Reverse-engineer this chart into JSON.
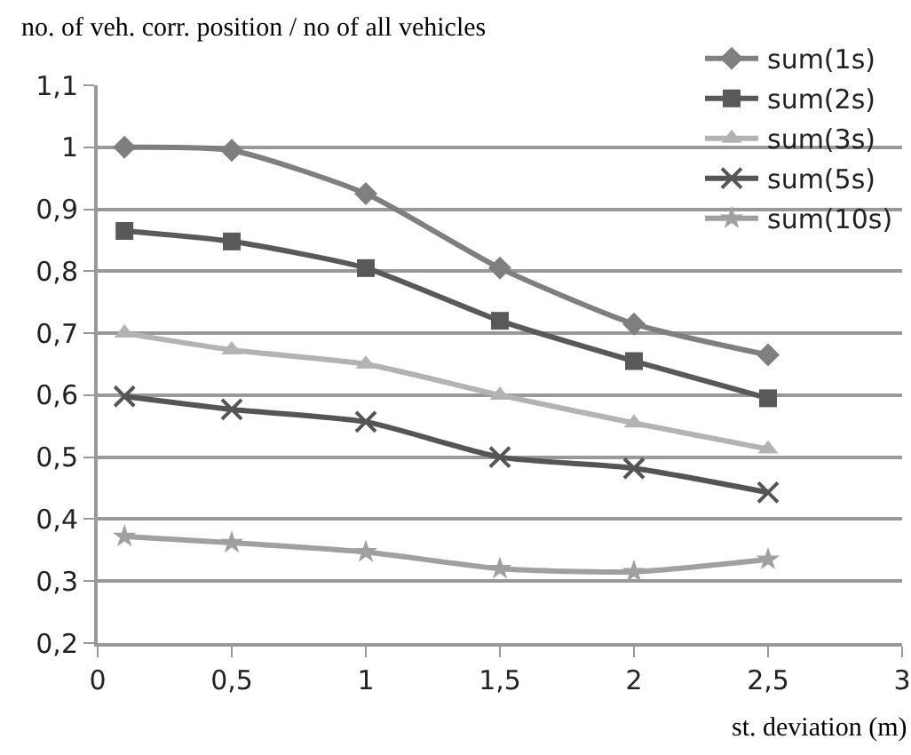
{
  "chart_data": {
    "type": "line",
    "xlabel": "st. deviation (m)",
    "ylabel": "no. of veh. corr. position / no of all vehicles",
    "x": [
      0.1,
      0.5,
      1,
      1.5,
      2,
      2.5
    ],
    "series": [
      {
        "name": "sum(1s)",
        "color": "#7f7f7f",
        "marker": "diamond",
        "values": [
          1.0,
          0.995,
          0.925,
          0.805,
          0.715,
          0.665
        ]
      },
      {
        "name": "sum(2s)",
        "color": "#595959",
        "marker": "square",
        "values": [
          0.865,
          0.848,
          0.805,
          0.72,
          0.655,
          0.595
        ]
      },
      {
        "name": "sum(3s)",
        "color": "#b3b3b3",
        "marker": "triangle",
        "values": [
          0.7,
          0.673,
          0.65,
          0.6,
          0.555,
          0.513
        ]
      },
      {
        "name": "sum(5s)",
        "color": "#555555",
        "marker": "cross",
        "values": [
          0.598,
          0.577,
          0.557,
          0.5,
          0.482,
          0.443
        ]
      },
      {
        "name": "sum(10s)",
        "color": "#a0a0a0",
        "marker": "star",
        "values": [
          0.372,
          0.362,
          0.347,
          0.32,
          0.315,
          0.335
        ]
      }
    ],
    "xlim": [
      0,
      3
    ],
    "xticks": [
      0,
      {
        "value": 0.5,
        "label": "0,5"
      },
      1,
      {
        "value": 1.5,
        "label": "1,5"
      },
      2,
      {
        "value": 2.5,
        "label": "2,5"
      },
      3
    ],
    "ylim": [
      0.2,
      1.1
    ],
    "yticks": [
      {
        "value": 0.2,
        "label": "0,2"
      },
      {
        "value": 0.3,
        "label": "0,3"
      },
      {
        "value": 0.4,
        "label": "0,4"
      },
      {
        "value": 0.5,
        "label": "0,5"
      },
      {
        "value": 0.6,
        "label": "0,6"
      },
      {
        "value": 0.7,
        "label": "0,7"
      },
      {
        "value": 0.8,
        "label": "0,8"
      },
      {
        "value": 0.9,
        "label": "0,9"
      },
      1,
      {
        "value": 1.1,
        "label": "1,1"
      }
    ],
    "grid": "y",
    "legend": "top right",
    "line_style": "solid"
  }
}
